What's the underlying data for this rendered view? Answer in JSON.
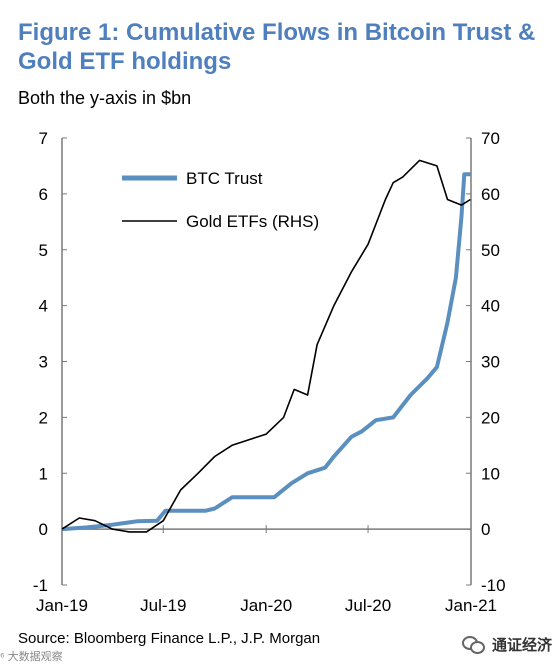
{
  "header": {
    "title": "Figure 1: Cumulative Flows in Bitcoin Trust & Gold ETF holdings",
    "subtitle": "Both the y-axis in $bn"
  },
  "footer": {
    "source": "Source:  Bloomberg Finance L.P., J.P. Morgan",
    "watermark_left": "⁶ 大数据观察",
    "watermark_right": "通证经济"
  },
  "colors": {
    "btc": "#5b8fbf",
    "gold": "#000000",
    "axis": "#7a7a7a",
    "title": "#4f80bd"
  },
  "chart_data": {
    "type": "line",
    "x_ticks": [
      "Jan-19",
      "Jul-19",
      "Jan-20",
      "Jul-20",
      "Jan-21"
    ],
    "x_range": [
      "2019-01-01",
      "2021-01-01"
    ],
    "ylim_left": [
      -1,
      7
    ],
    "ylim_right": [
      -10,
      70
    ],
    "left_ticks": [
      -1,
      0,
      1,
      2,
      3,
      4,
      5,
      6,
      7
    ],
    "right_ticks": [
      -10,
      0,
      10,
      20,
      30,
      40,
      50,
      60,
      70
    ],
    "grid": false,
    "legend_position": "top-left",
    "series": [
      {
        "name": "BTC Trust",
        "axis": "left",
        "points": [
          [
            "2019-01-01",
            0.0
          ],
          [
            "2019-02-15",
            0.03
          ],
          [
            "2019-04-01",
            0.08
          ],
          [
            "2019-05-15",
            0.14
          ],
          [
            "2019-06-20",
            0.15
          ],
          [
            "2019-07-05",
            0.33
          ],
          [
            "2019-09-15",
            0.33
          ],
          [
            "2019-10-01",
            0.37
          ],
          [
            "2019-11-01",
            0.57
          ],
          [
            "2020-01-15",
            0.57
          ],
          [
            "2020-02-15",
            0.82
          ],
          [
            "2020-03-15",
            1.0
          ],
          [
            "2020-04-15",
            1.1
          ],
          [
            "2020-05-01",
            1.3
          ],
          [
            "2020-06-01",
            1.65
          ],
          [
            "2020-06-20",
            1.75
          ],
          [
            "2020-07-15",
            1.95
          ],
          [
            "2020-08-15",
            2.0
          ],
          [
            "2020-09-15",
            2.4
          ],
          [
            "2020-10-15",
            2.7
          ],
          [
            "2020-11-01",
            2.9
          ],
          [
            "2020-11-20",
            3.7
          ],
          [
            "2020-12-05",
            4.5
          ],
          [
            "2020-12-15",
            5.6
          ],
          [
            "2020-12-20",
            6.35
          ],
          [
            "2020-12-31",
            6.35
          ]
        ]
      },
      {
        "name": "Gold ETFs (RHS)",
        "axis": "right",
        "points": [
          [
            "2019-01-01",
            0
          ],
          [
            "2019-02-01",
            2
          ],
          [
            "2019-03-01",
            1.5
          ],
          [
            "2019-04-01",
            0
          ],
          [
            "2019-05-01",
            -0.5
          ],
          [
            "2019-06-01",
            -0.5
          ],
          [
            "2019-07-01",
            1.5
          ],
          [
            "2019-08-01",
            7
          ],
          [
            "2019-09-01",
            10
          ],
          [
            "2019-10-01",
            13
          ],
          [
            "2019-11-01",
            15
          ],
          [
            "2019-12-01",
            16
          ],
          [
            "2020-01-01",
            17
          ],
          [
            "2020-02-01",
            20
          ],
          [
            "2020-02-20",
            25
          ],
          [
            "2020-03-15",
            24
          ],
          [
            "2020-04-01",
            33
          ],
          [
            "2020-05-01",
            40
          ],
          [
            "2020-06-01",
            46
          ],
          [
            "2020-07-01",
            51
          ],
          [
            "2020-08-01",
            59
          ],
          [
            "2020-08-15",
            62
          ],
          [
            "2020-09-01",
            63
          ],
          [
            "2020-10-01",
            66
          ],
          [
            "2020-11-01",
            65
          ],
          [
            "2020-11-20",
            59
          ],
          [
            "2020-12-15",
            58
          ],
          [
            "2020-12-31",
            59
          ]
        ]
      }
    ]
  }
}
